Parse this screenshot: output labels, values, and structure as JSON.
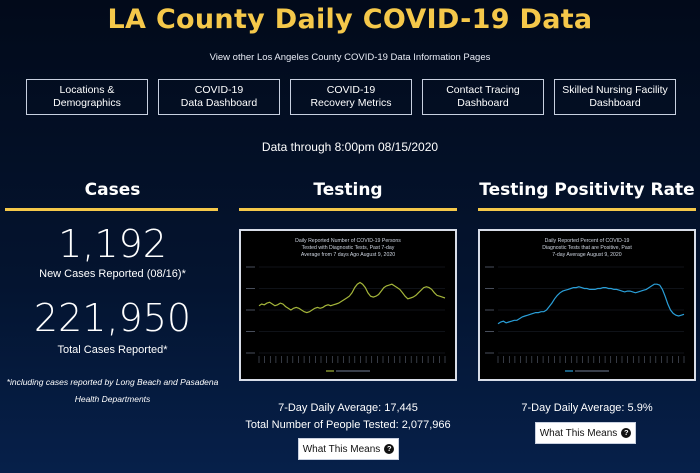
{
  "header": {
    "title": "LA County Daily COVID-19 Data",
    "subtitle": "View other Los Angeles County COVID-19 Data Information Pages"
  },
  "nav": [
    {
      "label": "Locations &\nDemographics"
    },
    {
      "label": "COVID-19\nData Dashboard"
    },
    {
      "label": "COVID-19\nRecovery Metrics"
    },
    {
      "label": "Contact Tracing\nDashboard"
    },
    {
      "label": "Skilled Nursing Facility\nDashboard"
    }
  ],
  "data_through": "Data through 8:00pm 08/15/2020",
  "cases": {
    "heading": "Cases",
    "new_cases": "1,192",
    "new_cases_label": "New Cases Reported (08/16)*",
    "total_cases": "221,950",
    "total_cases_label": "Total Cases Reported*",
    "footnote": "*including cases reported by Long Beach and Pasadena Health Departments"
  },
  "testing": {
    "heading": "Testing",
    "avg_label": "7-Day Daily Average: 17,445",
    "total_label": "Total Number of People Tested: 2,077,966",
    "button": "What This Means",
    "accent": "#a4b53a"
  },
  "positivity": {
    "heading": "Testing Positivity Rate",
    "avg_label": "7-Day Daily Average: 5.9%",
    "button": "What This Means",
    "accent": "#2a9fd8"
  },
  "chart_data": [
    {
      "type": "line",
      "title": "Daily Reported Number of COVID-19 Persons Tested with Diagnostic Tests, Past 7-day Average from 7 days Ago August 9, 2020",
      "series": [
        {
          "values": [
            0.55,
            0.57,
            0.56,
            0.58,
            0.59,
            0.57,
            0.55,
            0.56,
            0.58,
            0.57,
            0.54,
            0.52,
            0.5,
            0.52,
            0.53,
            0.52,
            0.5,
            0.48,
            0.47,
            0.48,
            0.5,
            0.52,
            0.53,
            0.52,
            0.53,
            0.55,
            0.56,
            0.55,
            0.56,
            0.57,
            0.58,
            0.6,
            0.62,
            0.64,
            0.66,
            0.7,
            0.76,
            0.8,
            0.82,
            0.8,
            0.76,
            0.7,
            0.66,
            0.65,
            0.66,
            0.68,
            0.72,
            0.76,
            0.78,
            0.79,
            0.8,
            0.78,
            0.76,
            0.74,
            0.7,
            0.66,
            0.63,
            0.64,
            0.65,
            0.67,
            0.7,
            0.73,
            0.76,
            0.77,
            0.76,
            0.74,
            0.7,
            0.67,
            0.66,
            0.65,
            0.64
          ]
        }
      ]
    },
    {
      "type": "line",
      "title": "Daily Reported Percent of COVID-19 Diagnostic Tests that are Positive, Past 7-day Average August 9, 2020",
      "series": [
        {
          "values": [
            0.34,
            0.36,
            0.37,
            0.35,
            0.36,
            0.37,
            0.38,
            0.38,
            0.4,
            0.42,
            0.43,
            0.44,
            0.45,
            0.46,
            0.47,
            0.47,
            0.48,
            0.48,
            0.5,
            0.54,
            0.58,
            0.63,
            0.67,
            0.7,
            0.72,
            0.73,
            0.74,
            0.75,
            0.76,
            0.76,
            0.77,
            0.76,
            0.75,
            0.75,
            0.74,
            0.74,
            0.74,
            0.75,
            0.75,
            0.76,
            0.76,
            0.75,
            0.75,
            0.74,
            0.74,
            0.73,
            0.72,
            0.71,
            0.72,
            0.72,
            0.71,
            0.7,
            0.71,
            0.72,
            0.73,
            0.74,
            0.76,
            0.78,
            0.8,
            0.8,
            0.79,
            0.74,
            0.66,
            0.57,
            0.5,
            0.46,
            0.44,
            0.43,
            0.44,
            0.45
          ]
        }
      ]
    }
  ]
}
